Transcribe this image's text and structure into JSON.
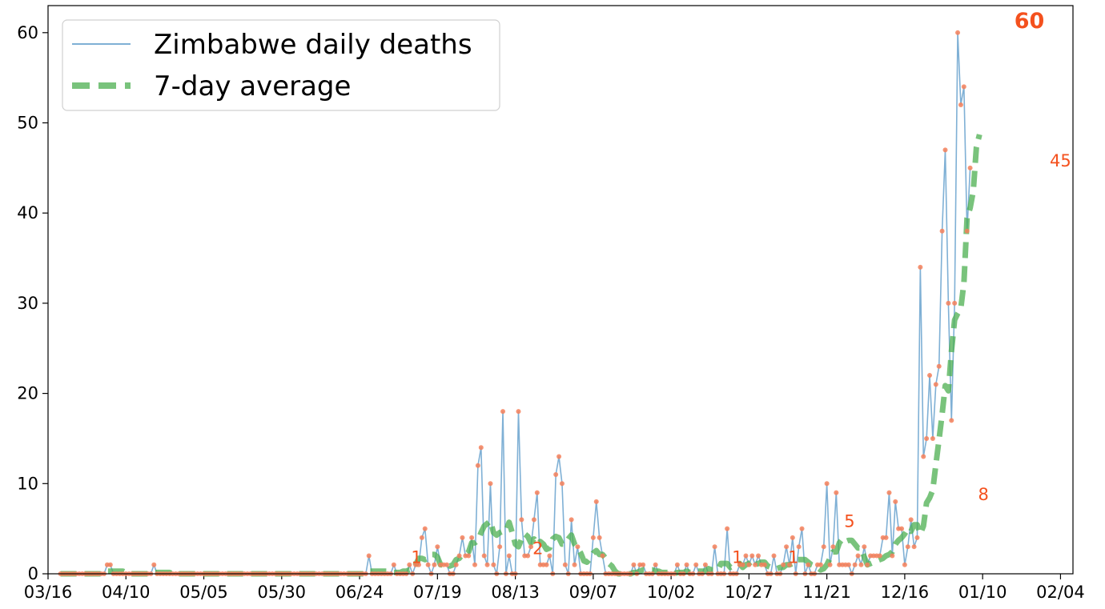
{
  "chart_data": {
    "type": "line",
    "title": "",
    "xlabel": "",
    "ylabel": "",
    "x_ticks": [
      "03/16",
      "04/10",
      "05/05",
      "05/30",
      "06/24",
      "07/19",
      "08/13",
      "09/07",
      "10/02",
      "10/27",
      "11/21",
      "12/16",
      "01/10",
      "02/04"
    ],
    "y_ticks": [
      0,
      10,
      20,
      30,
      40,
      50,
      60
    ],
    "ylim": [
      0,
      63
    ],
    "x_range_days": [
      -4,
      325
    ],
    "x_start_date": "03/20",
    "grid": false,
    "legend_position": "top-left",
    "series": [
      {
        "name": "Zimbabwe daily deaths",
        "color": "#7fb0d5",
        "marker_color": "#f4805a",
        "values": [
          0,
          0,
          0,
          0,
          0,
          0,
          0,
          0,
          0,
          0,
          0,
          0,
          0,
          0,
          0,
          1,
          1,
          0,
          0,
          0,
          0,
          0,
          0,
          0,
          0,
          0,
          0,
          0,
          0,
          0,
          1,
          0,
          0,
          0,
          0,
          0,
          0,
          0,
          0,
          0,
          0,
          0,
          0,
          0,
          0,
          0,
          0,
          0,
          0,
          0,
          0,
          0,
          0,
          0,
          0,
          0,
          0,
          0,
          0,
          0,
          0,
          0,
          0,
          0,
          0,
          0,
          0,
          0,
          0,
          0,
          0,
          0,
          0,
          0,
          0,
          0,
          0,
          0,
          0,
          0,
          0,
          0,
          0,
          0,
          0,
          0,
          0,
          0,
          0,
          0,
          0,
          0,
          0,
          0,
          0,
          0,
          0,
          0,
          0,
          2,
          0,
          0,
          0,
          0,
          0,
          0,
          0,
          1,
          0,
          0,
          0,
          0,
          1,
          0,
          1,
          1,
          4,
          5,
          1,
          0,
          1,
          3,
          1,
          1,
          1,
          0,
          0,
          1,
          2,
          4,
          2,
          2,
          4,
          1,
          12,
          14,
          2,
          1,
          10,
          1,
          0,
          3,
          18,
          0,
          2,
          0,
          0,
          18,
          6,
          2,
          2,
          3,
          6,
          9,
          1,
          1,
          1,
          2,
          0,
          11,
          13,
          10,
          1,
          0,
          6,
          1,
          3,
          0,
          0,
          0,
          0,
          4,
          8,
          4,
          2,
          0,
          0,
          0,
          0,
          0,
          0,
          0,
          0,
          0,
          1,
          0,
          1,
          1,
          0,
          0,
          0,
          1,
          0,
          0,
          0,
          0,
          0,
          0,
          1,
          0,
          0,
          1,
          0,
          0,
          1,
          0,
          0,
          1,
          0,
          0,
          3,
          0,
          0,
          0,
          5,
          0,
          0,
          0,
          1,
          1,
          2,
          1,
          2,
          1,
          2,
          1,
          1,
          0,
          0,
          2,
          0,
          0,
          1,
          3,
          1,
          4,
          0,
          3,
          5,
          0,
          1,
          0,
          0,
          1,
          1,
          3,
          10,
          1,
          3,
          9,
          1,
          1,
          1,
          1,
          0,
          1,
          2,
          1,
          3,
          1,
          2,
          2,
          2,
          2,
          4,
          4,
          9,
          2,
          8,
          5,
          5,
          1,
          3,
          6,
          3,
          4,
          34,
          13,
          15,
          22,
          15,
          21,
          23,
          38,
          47,
          30,
          17,
          30,
          60,
          52,
          54,
          38,
          45
        ]
      },
      {
        "name": "7-day average",
        "color": "#4caf50",
        "values": [
          0,
          0,
          0,
          0,
          0,
          0,
          0,
          0,
          0,
          0,
          0,
          0,
          0,
          0,
          0.14,
          0.29,
          0.29,
          0.29,
          0.29,
          0.29,
          0.29,
          0.14,
          0,
          0,
          0,
          0,
          0,
          0,
          0,
          0.14,
          0.14,
          0.14,
          0.14,
          0.14,
          0.14,
          0.14,
          0,
          0,
          0,
          0,
          0,
          0,
          0,
          0,
          0,
          0,
          0,
          0,
          0,
          0,
          0,
          0,
          0,
          0,
          0,
          0,
          0,
          0,
          0,
          0,
          0,
          0,
          0,
          0,
          0,
          0,
          0,
          0,
          0,
          0,
          0,
          0,
          0,
          0,
          0,
          0,
          0,
          0,
          0,
          0,
          0,
          0,
          0,
          0,
          0,
          0,
          0,
          0,
          0,
          0,
          0,
          0,
          0,
          0,
          0,
          0,
          0,
          0,
          0,
          0.29,
          0.29,
          0.29,
          0.29,
          0.29,
          0.29,
          0.29,
          0.14,
          0.14,
          0.14,
          0.14,
          0.29,
          0.29,
          0.43,
          0.43,
          1,
          1.71,
          1.71,
          1.57,
          1.71,
          2.14,
          2.14,
          1.86,
          1,
          1,
          1.14,
          0.86,
          1,
          1.57,
          1.71,
          2.14,
          2.14,
          2.43,
          3.43,
          3.43,
          3.71,
          4.57,
          5.29,
          5.57,
          5.86,
          4.57,
          4.29,
          4.57,
          4.71,
          4.71,
          5.71,
          4.57,
          3.29,
          3,
          3.86,
          4.43,
          4.14,
          3.43,
          3.86,
          3.29,
          3.57,
          3.29,
          2.71,
          2.86,
          3.86,
          4.14,
          4,
          3.29,
          3.29,
          3.86,
          4.29,
          3.29,
          2.86,
          2.29,
          1.43,
          1.29,
          1.71,
          2.29,
          2.57,
          2.14,
          2.14,
          1.71,
          1.14,
          0.86,
          0.29,
          0,
          0,
          0,
          0,
          0,
          0.14,
          0.14,
          0.29,
          0.43,
          0.43,
          0.43,
          0.43,
          0.29,
          0.29,
          0.14,
          0.14,
          0.14,
          0,
          0,
          0.14,
          0.14,
          0.14,
          0.29,
          0.14,
          0.14,
          0.29,
          0.29,
          0.29,
          0.29,
          0.57,
          0.43,
          0.43,
          0.43,
          1.14,
          1.14,
          1.14,
          0.71,
          0.86,
          0.86,
          1.14,
          0.71,
          1,
          1.14,
          1.43,
          1,
          1.14,
          1.29,
          1.29,
          0.86,
          0.71,
          0.71,
          0.57,
          0.71,
          0.71,
          1,
          1,
          1.14,
          1.57,
          1.57,
          1.57,
          1.57,
          1.29,
          1,
          0.86,
          0.71,
          0.43,
          0.57,
          1,
          1.71,
          2.43,
          2.43,
          3.43,
          3.86,
          3.57,
          3.71,
          3.71,
          3.29,
          2.86,
          2.86,
          1.86,
          1,
          1.14,
          1.29,
          1.43,
          1.57,
          1.71,
          2,
          2.14,
          2.43,
          3.29,
          3.71,
          4,
          4.43,
          5,
          4.71,
          5.43,
          5.43,
          4.43,
          5.29,
          7.86,
          8.43,
          9.29,
          12.14,
          14.86,
          17.71,
          20.86,
          20.29,
          24.71,
          28.14,
          28.86,
          29.43,
          32.29,
          39.43,
          40.57,
          42.43,
          47.29,
          48.71
        ]
      }
    ],
    "annotations": [
      {
        "text": "1",
        "day": 111,
        "value": 1,
        "bold": false
      },
      {
        "text": "2",
        "day": 150,
        "value": 2,
        "bold": false
      },
      {
        "text": "1",
        "day": 214,
        "value": 1,
        "bold": false
      },
      {
        "text": "1",
        "day": 232,
        "value": 1,
        "bold": false
      },
      {
        "text": "5",
        "day": 250,
        "value": 5,
        "bold": false
      },
      {
        "text": "8",
        "day": 293,
        "value": 8,
        "bold": false
      },
      {
        "text": "60",
        "day": 311,
        "value": 60,
        "bold": true
      },
      {
        "text": "45",
        "day": 316,
        "value": 45,
        "bold": false
      }
    ]
  }
}
